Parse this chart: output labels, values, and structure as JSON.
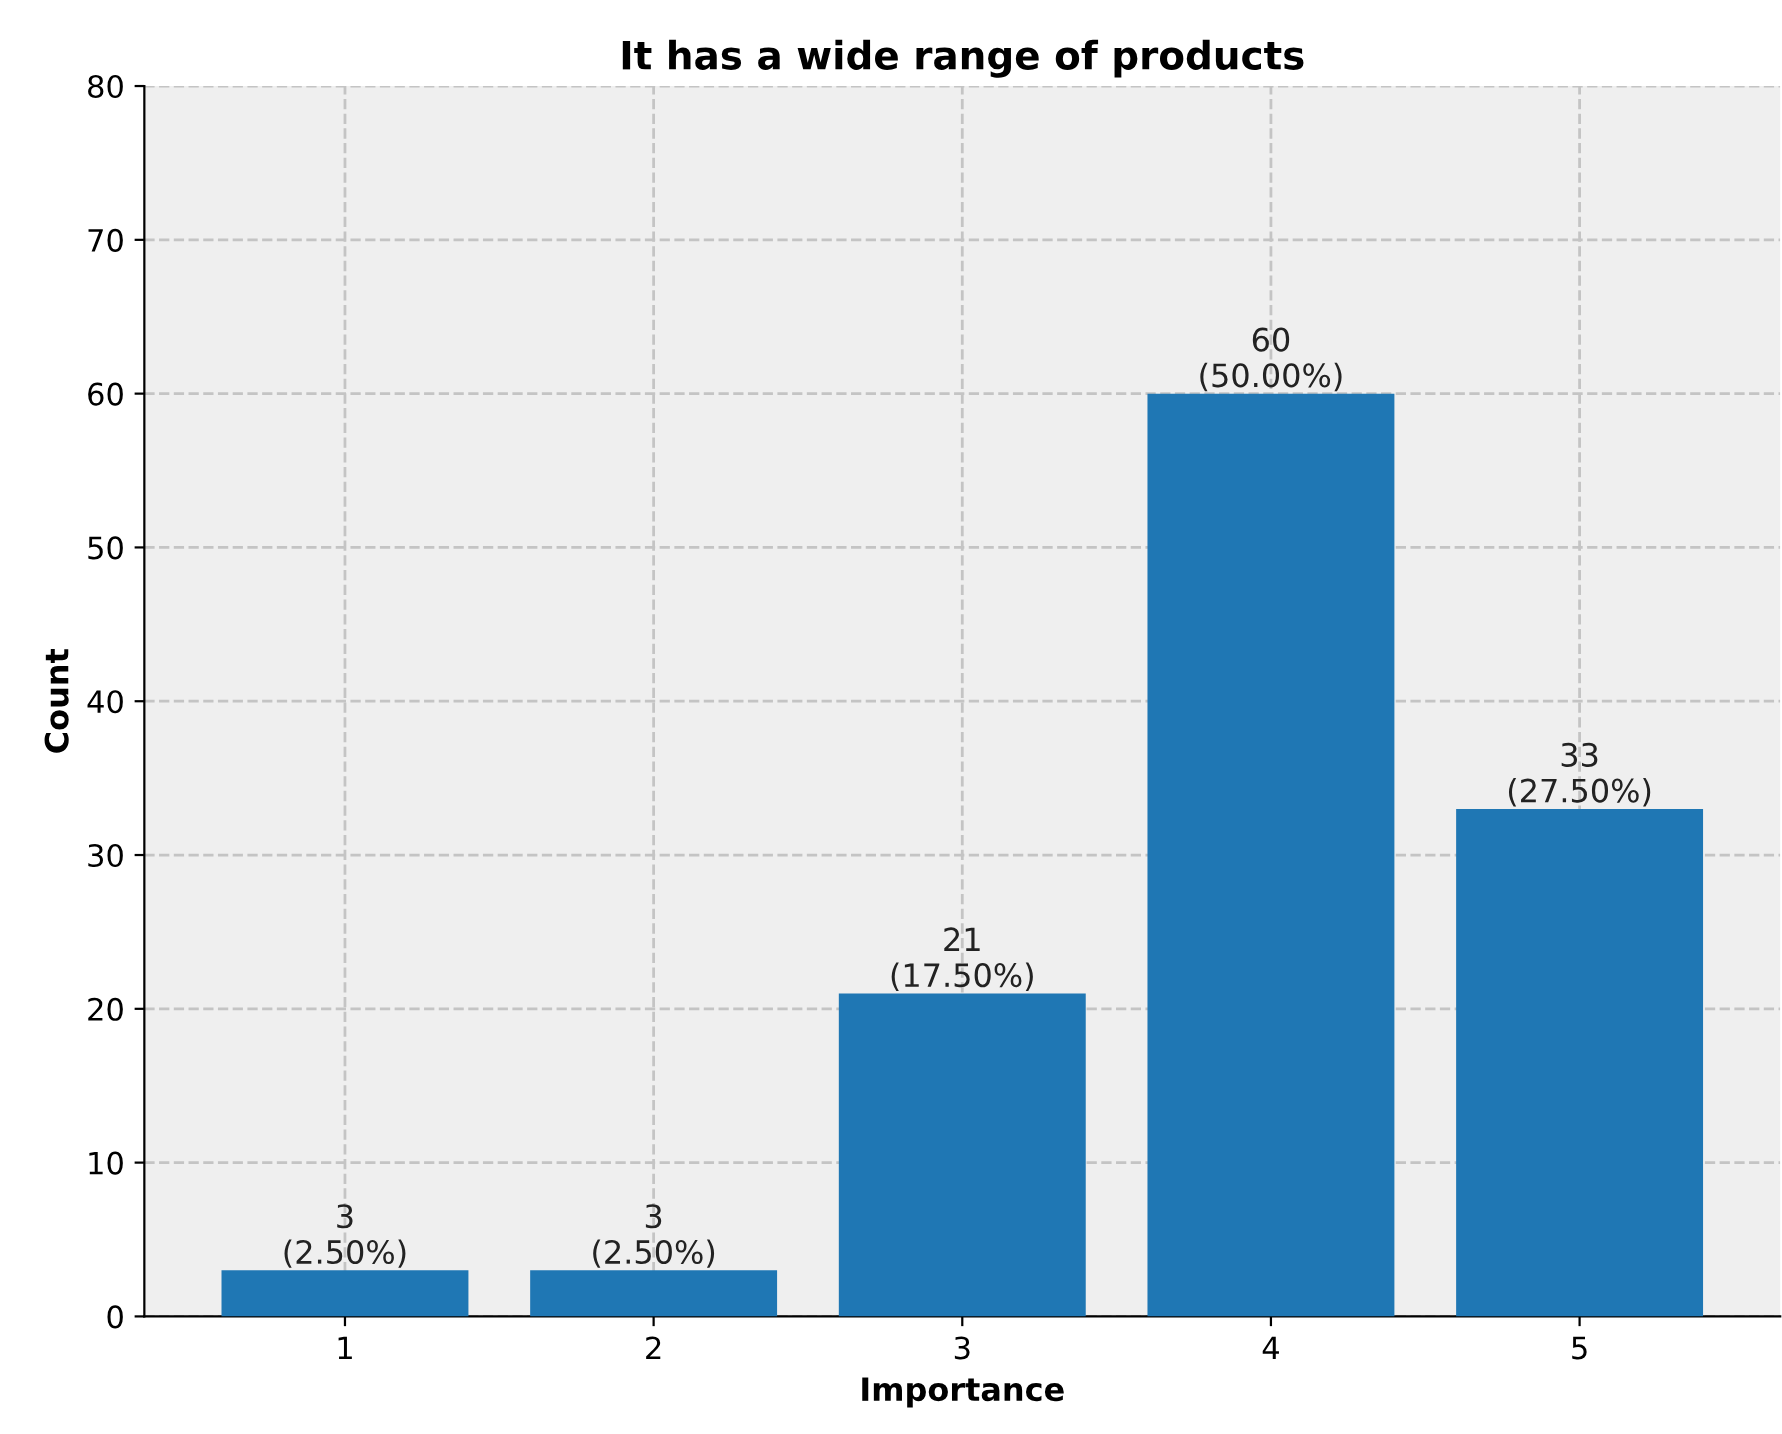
{
  "chart_data": {
    "type": "bar",
    "title": "It has a wide range of products",
    "xlabel": "Importance",
    "ylabel": "Count",
    "categories": [
      "1",
      "2",
      "3",
      "4",
      "5"
    ],
    "values": [
      3,
      3,
      21,
      60,
      33
    ],
    "value_labels": [
      "3\n(2.50%)",
      "3\n(2.50%)",
      "21\n(17.50%)",
      "60\n(50.00%)",
      "33\n(27.50%)"
    ],
    "color": "#1f77b4",
    "ylim": [
      0,
      80
    ],
    "yticks": [
      0,
      10,
      20,
      30,
      40,
      50,
      60,
      70,
      80
    ],
    "grid": true
  }
}
